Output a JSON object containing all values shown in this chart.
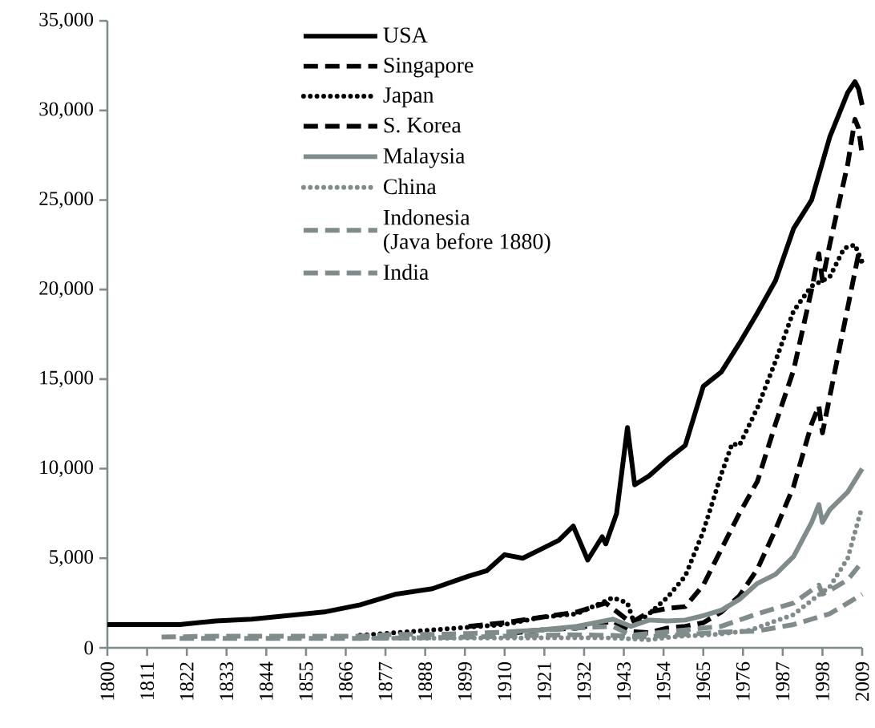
{
  "chart_data": {
    "type": "line",
    "xlim": [
      1800,
      2009
    ],
    "ylim": [
      0,
      35000
    ],
    "xticks": [
      1800,
      1811,
      1822,
      1833,
      1844,
      1855,
      1866,
      1877,
      1888,
      1899,
      1910,
      1921,
      1932,
      1943,
      1954,
      1965,
      1976,
      1987,
      1998,
      2009
    ],
    "yticks": [
      0,
      {
        "value": 5000,
        "label": "5,000"
      },
      {
        "value": 10000,
        "label": "10,000"
      },
      {
        "value": 15000,
        "label": "15,000"
      },
      {
        "value": 20000,
        "label": "20,000"
      },
      {
        "value": 25000,
        "label": "25,000"
      },
      {
        "value": 30000,
        "label": "30,000"
      },
      {
        "value": 35000,
        "label": "35,000"
      }
    ],
    "legend": "top left",
    "series": [
      {
        "name": "USA",
        "color": "#000000",
        "line_style": "solid",
        "x": [
          1800,
          1810,
          1820,
          1830,
          1840,
          1850,
          1860,
          1870,
          1880,
          1890,
          1900,
          1905,
          1910,
          1915,
          1920,
          1925,
          1929,
          1933,
          1937,
          1938,
          1941,
          1944,
          1946,
          1950,
          1955,
          1960,
          1965,
          1970,
          1975,
          1980,
          1985,
          1990,
          1995,
          2000,
          2005,
          2007,
          2008,
          2009
        ],
        "values": [
          1300,
          1300,
          1300,
          1500,
          1600,
          1800,
          2000,
          2400,
          3000,
          3300,
          4000,
          4300,
          5200,
          5000,
          5500,
          6000,
          6800,
          4900,
          6200,
          5800,
          7500,
          12300,
          9100,
          9600,
          10500,
          11300,
          14600,
          15400,
          17000,
          18700,
          20500,
          23400,
          25000,
          28500,
          31000,
          31600,
          31200,
          30300
        ]
      },
      {
        "name": "Singapore",
        "color": "#000000",
        "line_style": "dashed",
        "x": [
          1900,
          1910,
          1920,
          1930,
          1938,
          1945,
          1950,
          1955,
          1960,
          1965,
          1970,
          1975,
          1980,
          1985,
          1990,
          1995,
          1997,
          1998,
          2000,
          2005,
          2007,
          2008,
          2009
        ],
        "values": [
          1200,
          1400,
          1700,
          2000,
          2500,
          1400,
          2000,
          2200,
          2300,
          3500,
          5500,
          7500,
          9300,
          12500,
          15500,
          20000,
          22000,
          20500,
          22500,
          27000,
          29500,
          29000,
          27500
        ]
      },
      {
        "name": "Japan",
        "color": "#000000",
        "line_style": "dotted",
        "x": [
          1870,
          1880,
          1890,
          1900,
          1910,
          1920,
          1930,
          1940,
          1944,
          1946,
          1950,
          1955,
          1960,
          1965,
          1970,
          1973,
          1975,
          1980,
          1985,
          1990,
          1995,
          2000,
          2004,
          2007,
          2009
        ],
        "values": [
          700,
          850,
          1000,
          1150,
          1300,
          1700,
          1900,
          2800,
          2500,
          1300,
          1900,
          2800,
          4000,
          6500,
          9700,
          11400,
          11300,
          13400,
          16000,
          18800,
          20200,
          20700,
          22300,
          22500,
          21500
        ]
      },
      {
        "name": "S. Korea",
        "color": "#000000",
        "line_style": "dashed",
        "x": [
          1911,
          1920,
          1930,
          1940,
          1945,
          1950,
          1955,
          1960,
          1965,
          1970,
          1975,
          1980,
          1985,
          1990,
          1995,
          1997,
          1998,
          2000,
          2005,
          2008,
          2009
        ],
        "values": [
          800,
          1000,
          1100,
          1500,
          900,
          850,
          1100,
          1200,
          1400,
          2000,
          2900,
          4400,
          6600,
          9000,
          12500,
          13500,
          12000,
          14000,
          19000,
          22000,
          21500
        ]
      },
      {
        "name": "Malaysia",
        "color": "#808b8b",
        "line_style": "solid",
        "x": [
          1911,
          1920,
          1930,
          1940,
          1945,
          1950,
          1955,
          1960,
          1965,
          1970,
          1975,
          1980,
          1985,
          1990,
          1995,
          1997,
          1998,
          2000,
          2005,
          2009
        ],
        "values": [
          900,
          1000,
          1200,
          1600,
          1200,
          1550,
          1500,
          1550,
          1800,
          2100,
          2700,
          3600,
          4100,
          5100,
          7000,
          8000,
          7000,
          7700,
          8700,
          10000
        ]
      },
      {
        "name": "China",
        "color": "#808b8b",
        "line_style": "dotted",
        "x": [
          1870,
          1890,
          1913,
          1929,
          1938,
          1945,
          1950,
          1955,
          1960,
          1965,
          1970,
          1978,
          1985,
          1990,
          1995,
          2000,
          2005,
          2009
        ],
        "values": [
          530,
          540,
          550,
          560,
          560,
          500,
          450,
          580,
          660,
          700,
          780,
          980,
          1500,
          1850,
          2650,
          3400,
          5000,
          7900
        ]
      },
      {
        "name": "Indonesia\n(Java before 1880)",
        "color": "#808b8b",
        "line_style": "dashed",
        "x": [
          1815,
          1830,
          1850,
          1870,
          1880,
          1890,
          1900,
          1913,
          1929,
          1940,
          1945,
          1950,
          1960,
          1970,
          1980,
          1990,
          1997,
          1998,
          2000,
          2005,
          2009
        ],
        "values": [
          600,
          650,
          650,
          650,
          750,
          750,
          800,
          900,
          1100,
          1200,
          700,
          800,
          1000,
          1200,
          1900,
          2500,
          3500,
          3000,
          3200,
          3800,
          4800
        ]
      },
      {
        "name": "India",
        "color": "#808b8b",
        "line_style": "dashed",
        "x": [
          1820,
          1850,
          1870,
          1884,
          1900,
          1913,
          1929,
          1940,
          1946,
          1950,
          1960,
          1970,
          1980,
          1990,
          1995,
          2000,
          2005,
          2009
        ],
        "values": [
          530,
          530,
          530,
          550,
          600,
          670,
          730,
          690,
          620,
          620,
          750,
          870,
          940,
          1300,
          1600,
          1900,
          2500,
          3000
        ]
      }
    ]
  }
}
